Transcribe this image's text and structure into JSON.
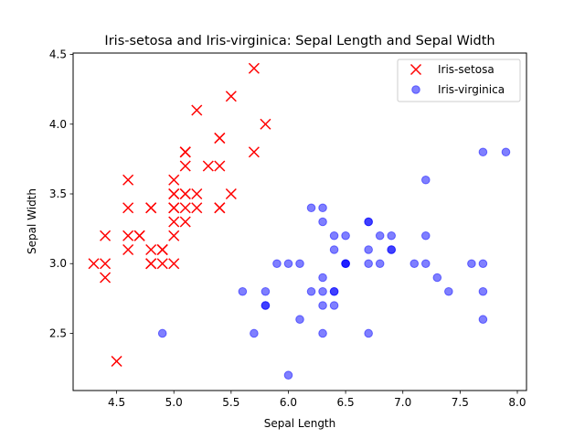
{
  "chart_data": {
    "type": "scatter",
    "title": "Iris-setosa and Iris-virginica: Sepal Length and Sepal Width",
    "xlabel": "Sepal Length",
    "ylabel": "Sepal Width",
    "xlim": [
      4.12,
      8.08
    ],
    "ylim": [
      2.09,
      4.51
    ],
    "xticks": [
      "4.5",
      "5.0",
      "5.5",
      "6.0",
      "6.5",
      "7.0",
      "7.5",
      "8.0"
    ],
    "yticks": [
      "2.5",
      "3.0",
      "3.5",
      "4.0",
      "4.5"
    ],
    "grid": false,
    "legend_position": "top-right",
    "series": [
      {
        "name": "Iris-setosa",
        "marker": "x",
        "color": "#ff0000",
        "points": [
          [
            5.1,
            3.5
          ],
          [
            4.9,
            3.0
          ],
          [
            4.7,
            3.2
          ],
          [
            4.6,
            3.1
          ],
          [
            5.0,
            3.6
          ],
          [
            5.4,
            3.9
          ],
          [
            4.6,
            3.4
          ],
          [
            5.0,
            3.4
          ],
          [
            4.4,
            2.9
          ],
          [
            4.9,
            3.1
          ],
          [
            5.4,
            3.7
          ],
          [
            4.8,
            3.4
          ],
          [
            4.8,
            3.0
          ],
          [
            4.3,
            3.0
          ],
          [
            5.8,
            4.0
          ],
          [
            5.7,
            4.4
          ],
          [
            5.4,
            3.9
          ],
          [
            5.1,
            3.5
          ],
          [
            5.7,
            3.8
          ],
          [
            5.1,
            3.8
          ],
          [
            5.4,
            3.4
          ],
          [
            5.1,
            3.7
          ],
          [
            4.6,
            3.6
          ],
          [
            5.1,
            3.3
          ],
          [
            4.8,
            3.4
          ],
          [
            5.0,
            3.0
          ],
          [
            5.0,
            3.4
          ],
          [
            5.2,
            3.5
          ],
          [
            5.2,
            3.4
          ],
          [
            4.7,
            3.2
          ],
          [
            4.8,
            3.1
          ],
          [
            5.4,
            3.4
          ],
          [
            5.2,
            4.1
          ],
          [
            5.5,
            4.2
          ],
          [
            4.9,
            3.1
          ],
          [
            5.0,
            3.2
          ],
          [
            5.5,
            3.5
          ],
          [
            4.9,
            3.1
          ],
          [
            4.4,
            3.0
          ],
          [
            5.1,
            3.4
          ],
          [
            5.0,
            3.5
          ],
          [
            4.5,
            2.3
          ],
          [
            4.4,
            3.2
          ],
          [
            5.0,
            3.5
          ],
          [
            5.1,
            3.8
          ],
          [
            4.8,
            3.0
          ],
          [
            5.1,
            3.8
          ],
          [
            4.6,
            3.2
          ],
          [
            5.3,
            3.7
          ],
          [
            5.0,
            3.3
          ]
        ]
      },
      {
        "name": "Iris-virginica",
        "marker": "o",
        "color": "#0000ff",
        "points": [
          [
            6.3,
            3.3
          ],
          [
            5.8,
            2.7
          ],
          [
            7.1,
            3.0
          ],
          [
            6.3,
            2.9
          ],
          [
            6.5,
            3.0
          ],
          [
            7.6,
            3.0
          ],
          [
            4.9,
            2.5
          ],
          [
            7.3,
            2.9
          ],
          [
            6.7,
            2.5
          ],
          [
            7.2,
            3.6
          ],
          [
            6.5,
            3.2
          ],
          [
            6.4,
            2.7
          ],
          [
            6.8,
            3.0
          ],
          [
            5.7,
            2.5
          ],
          [
            5.8,
            2.8
          ],
          [
            6.4,
            3.2
          ],
          [
            6.5,
            3.0
          ],
          [
            7.7,
            3.8
          ],
          [
            7.7,
            2.6
          ],
          [
            6.0,
            2.2
          ],
          [
            6.9,
            3.2
          ],
          [
            5.6,
            2.8
          ],
          [
            7.7,
            2.8
          ],
          [
            6.3,
            2.7
          ],
          [
            6.7,
            3.3
          ],
          [
            7.2,
            3.2
          ],
          [
            6.2,
            2.8
          ],
          [
            6.1,
            3.0
          ],
          [
            6.4,
            2.8
          ],
          [
            7.2,
            3.0
          ],
          [
            7.4,
            2.8
          ],
          [
            7.9,
            3.8
          ],
          [
            6.4,
            2.8
          ],
          [
            6.3,
            2.8
          ],
          [
            6.1,
            2.6
          ],
          [
            7.7,
            3.0
          ],
          [
            6.3,
            3.4
          ],
          [
            6.4,
            3.1
          ],
          [
            6.0,
            3.0
          ],
          [
            6.9,
            3.1
          ],
          [
            6.7,
            3.1
          ],
          [
            6.9,
            3.1
          ],
          [
            5.8,
            2.7
          ],
          [
            6.8,
            3.2
          ],
          [
            6.7,
            3.3
          ],
          [
            6.7,
            3.0
          ],
          [
            6.3,
            2.5
          ],
          [
            6.5,
            3.0
          ],
          [
            6.2,
            3.4
          ],
          [
            5.9,
            3.0
          ]
        ]
      }
    ]
  }
}
